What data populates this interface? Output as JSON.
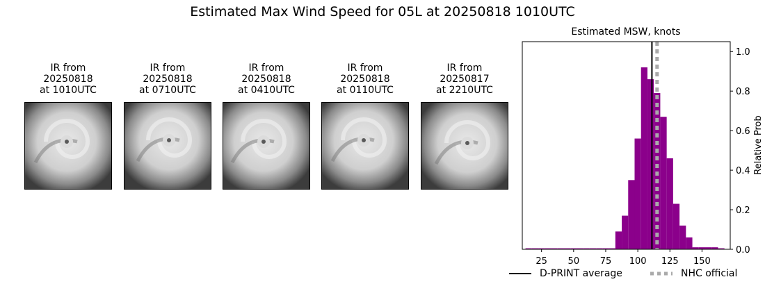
{
  "title": "Estimated Max Wind Speed for 05L at 20250818 1010UTC",
  "panels": [
    {
      "caption": "IR from\n20250818\nat 1010UTC"
    },
    {
      "caption": "IR from\n20250818\nat 0710UTC"
    },
    {
      "caption": "IR from\n20250818\nat 0410UTC"
    },
    {
      "caption": "IR from\n20250818\nat 0110UTC"
    },
    {
      "caption": "IR from\n20250817\nat 2210UTC"
    }
  ],
  "legend": {
    "dprint_label": "D-PRINT average",
    "nhc_label": "NHC official"
  },
  "colors": {
    "bars": "#8b008b",
    "dprint_line": "#000000",
    "nhc_line": "#aaaaaa"
  },
  "chart_data": {
    "type": "bar",
    "title": "Estimated MSW, knots",
    "xlabel": "",
    "ylabel": "Relative Prob",
    "xlim": [
      10,
      172
    ],
    "ylim": [
      0,
      1.05
    ],
    "xticks": [
      25,
      50,
      75,
      100,
      125,
      150
    ],
    "yticks": [
      0.0,
      0.2,
      0.4,
      0.6,
      0.8,
      1.0
    ],
    "ytick_labels": [
      "0.0",
      "0.2",
      "0.4",
      "0.6",
      "0.8",
      "1.0"
    ],
    "y_axis_side": "right",
    "bin_width": 5,
    "x": [
      15,
      20,
      25,
      30,
      35,
      40,
      45,
      50,
      55,
      60,
      65,
      70,
      75,
      80,
      85,
      90,
      95,
      100,
      105,
      110,
      115,
      120,
      125,
      130,
      135,
      140,
      145,
      150,
      155,
      160,
      165
    ],
    "values": [
      0.005,
      0.005,
      0.005,
      0.005,
      0.005,
      0.005,
      0.005,
      0.005,
      0.005,
      0.005,
      0.005,
      0.005,
      0.005,
      0.005,
      0.09,
      0.17,
      0.35,
      0.56,
      0.92,
      0.86,
      0.79,
      0.67,
      0.46,
      0.23,
      0.12,
      0.06,
      0.01,
      0.01,
      0.01,
      0.01,
      0.005
    ],
    "dprint_average": 111,
    "nhc_official": 115,
    "legend_placement": "below"
  }
}
